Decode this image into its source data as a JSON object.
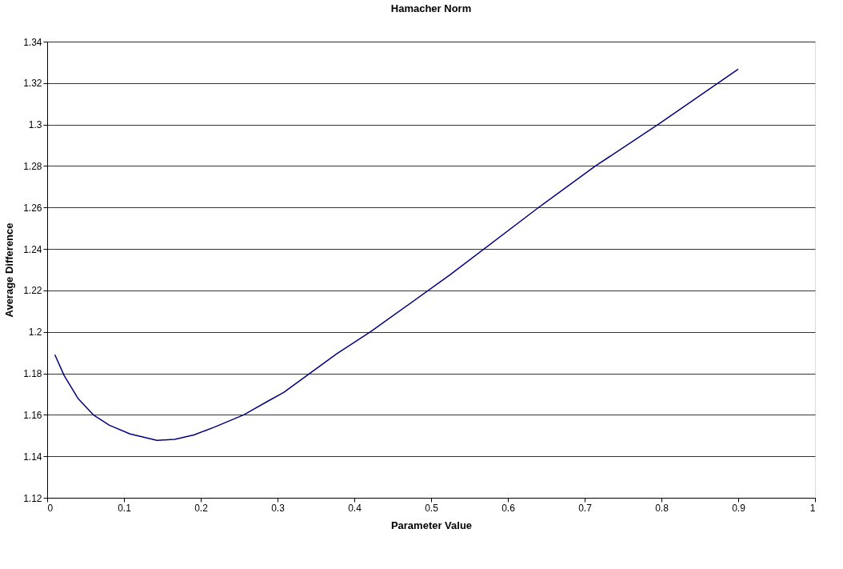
{
  "chart_data": {
    "type": "line",
    "title": "Hamacher Norm",
    "xlabel": "Parameter Value",
    "ylabel": "Average Difference",
    "xlim": [
      0,
      1
    ],
    "xticks": [
      0,
      0.1,
      0.2,
      0.3,
      0.4,
      0.5,
      0.6,
      0.7,
      0.8,
      0.9,
      1
    ],
    "ylim": [
      1.12,
      1.34
    ],
    "yticks": [
      1.12,
      1.14,
      1.16,
      1.18,
      1.2,
      1.22,
      1.24,
      1.26,
      1.28,
      1.3,
      1.32,
      1.34
    ],
    "grid": "y",
    "marker": "none",
    "line_style": "solid",
    "series": [
      {
        "color": "#000080",
        "x": [
          0.01,
          0.022,
          0.04,
          0.06,
          0.081,
          0.108,
          0.143,
          0.166,
          0.191,
          0.218,
          0.256,
          0.287,
          0.308,
          0.377,
          0.421,
          0.525,
          0.64,
          0.714,
          0.797,
          0.9
        ],
        "values": [
          1.189,
          1.179,
          1.168,
          1.16,
          1.155,
          1.1508,
          1.1477,
          1.1482,
          1.1503,
          1.1541,
          1.16,
          1.1665,
          1.1708,
          1.1894,
          1.2,
          1.2276,
          1.26,
          1.28,
          1.3004,
          1.3267
        ]
      }
    ]
  }
}
